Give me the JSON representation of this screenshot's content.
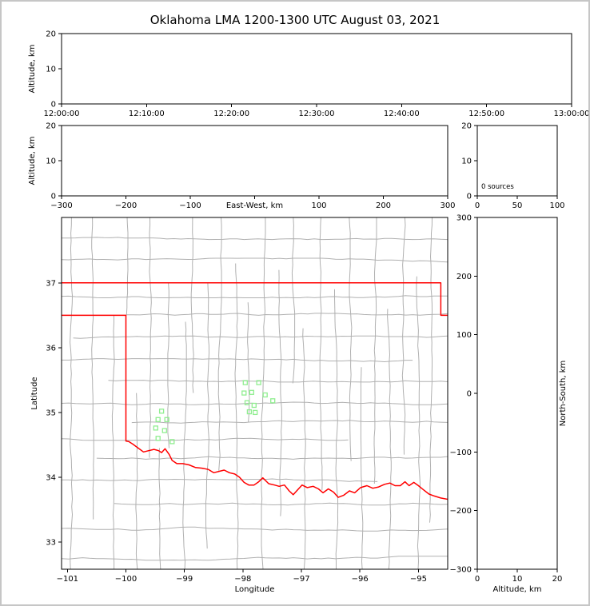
{
  "title": "Oklahoma LMA 1200-1300 UTC August 03, 2021",
  "colors": {
    "frame_border": "#c6c6c6",
    "axis": "#000000",
    "state_border": "#ff0000",
    "county_border": "#b0b0b0",
    "station_marker": "#90ee90"
  },
  "chart_data": [
    {
      "id": "time_height",
      "type": "scatter",
      "ylabel": "Altitude, km",
      "ylim": [
        0,
        20
      ],
      "yticks": [
        0,
        10,
        20
      ],
      "xtick_labels": [
        "12:00:00",
        "12:10:00",
        "12:20:00",
        "12:30:00",
        "12:40:00",
        "12:50:00",
        "13:00:00"
      ],
      "points": []
    },
    {
      "id": "ew_height",
      "type": "scatter",
      "xlabel": "East-West, km",
      "ylabel": "Altitude, km",
      "xlim": [
        -300,
        300
      ],
      "ylim": [
        0,
        20
      ],
      "xticks": [
        -300,
        -200,
        -100,
        0,
        100,
        200,
        300
      ],
      "yticks": [
        0,
        10,
        20
      ],
      "points": []
    },
    {
      "id": "alt_histogram",
      "type": "bar",
      "xlim": [
        0,
        100
      ],
      "ylim": [
        0,
        20
      ],
      "xticks": [
        0,
        50,
        100
      ],
      "yticks": [
        0,
        10,
        20
      ],
      "annotation": "0 sources",
      "values": []
    },
    {
      "id": "plan_view",
      "type": "scatter",
      "xlabel": "Longitude",
      "ylabel": "Latitude",
      "xlim": [
        -101.1,
        -94.5
      ],
      "ylim": [
        32.58,
        38.01
      ],
      "xticks": [
        -101,
        -100,
        -99,
        -98,
        -97,
        -96,
        -95
      ],
      "yticks": [
        33,
        34,
        35,
        36,
        37
      ],
      "stations": [
        [
          -97.96,
          35.46
        ],
        [
          -97.73,
          35.46
        ],
        [
          -97.98,
          35.3
        ],
        [
          -97.85,
          35.31
        ],
        [
          -97.62,
          35.27
        ],
        [
          -97.93,
          35.15
        ],
        [
          -97.81,
          35.11
        ],
        [
          -97.49,
          35.18
        ],
        [
          -97.89,
          35.01
        ],
        [
          -97.79,
          35.0
        ],
        [
          -99.39,
          35.02
        ],
        [
          -99.45,
          34.89
        ],
        [
          -99.3,
          34.89
        ],
        [
          -99.49,
          34.76
        ],
        [
          -99.34,
          34.72
        ],
        [
          -99.45,
          34.6
        ],
        [
          -99.21,
          34.55
        ]
      ],
      "state_outline_north": [
        [
          -101.1,
          37.0
        ],
        [
          -94.618,
          37.0
        ],
        [
          -94.618,
          36.5
        ],
        [
          -94.5,
          36.5
        ]
      ],
      "state_outline_main": [
        [
          -94.5,
          33.66
        ],
        [
          -94.62,
          33.68
        ],
        [
          -94.73,
          33.71
        ],
        [
          -94.82,
          33.74
        ],
        [
          -94.92,
          33.81
        ],
        [
          -95.0,
          33.87
        ],
        [
          -95.08,
          33.92
        ],
        [
          -95.16,
          33.87
        ],
        [
          -95.23,
          33.93
        ],
        [
          -95.31,
          33.87
        ],
        [
          -95.4,
          33.87
        ],
        [
          -95.49,
          33.91
        ],
        [
          -95.58,
          33.89
        ],
        [
          -95.68,
          33.85
        ],
        [
          -95.78,
          33.83
        ],
        [
          -95.88,
          33.87
        ],
        [
          -95.99,
          33.84
        ],
        [
          -96.09,
          33.76
        ],
        [
          -96.18,
          33.79
        ],
        [
          -96.28,
          33.72
        ],
        [
          -96.37,
          33.69
        ],
        [
          -96.45,
          33.77
        ],
        [
          -96.54,
          33.82
        ],
        [
          -96.63,
          33.76
        ],
        [
          -96.71,
          33.82
        ],
        [
          -96.8,
          33.86
        ],
        [
          -96.9,
          33.84
        ],
        [
          -96.99,
          33.88
        ],
        [
          -97.07,
          33.8
        ],
        [
          -97.14,
          33.73
        ],
        [
          -97.21,
          33.79
        ],
        [
          -97.29,
          33.88
        ],
        [
          -97.38,
          33.86
        ],
        [
          -97.46,
          33.88
        ],
        [
          -97.56,
          33.9
        ],
        [
          -97.66,
          33.99
        ],
        [
          -97.73,
          33.93
        ],
        [
          -97.81,
          33.88
        ],
        [
          -97.9,
          33.88
        ],
        [
          -97.98,
          33.92
        ],
        [
          -98.06,
          34.0
        ],
        [
          -98.14,
          34.05
        ],
        [
          -98.23,
          34.07
        ],
        [
          -98.32,
          34.11
        ],
        [
          -98.41,
          34.09
        ],
        [
          -98.5,
          34.07
        ],
        [
          -98.59,
          34.12
        ],
        [
          -98.7,
          34.14
        ],
        [
          -98.81,
          34.15
        ],
        [
          -98.92,
          34.19
        ],
        [
          -99.03,
          34.21
        ],
        [
          -99.13,
          34.21
        ],
        [
          -99.21,
          34.26
        ],
        [
          -99.26,
          34.35
        ],
        [
          -99.33,
          34.44
        ],
        [
          -99.39,
          34.38
        ],
        [
          -99.44,
          34.41
        ],
        [
          -99.52,
          34.43
        ],
        [
          -99.61,
          34.41
        ],
        [
          -99.7,
          34.39
        ],
        [
          -99.79,
          34.45
        ],
        [
          -99.88,
          34.51
        ],
        [
          -99.95,
          34.55
        ],
        [
          -100.0,
          34.56
        ],
        [
          -100.0,
          36.5
        ],
        [
          -101.1,
          36.5
        ]
      ],
      "county_lines_vertical": [
        [
          -100.95,
          32.58,
          38.01
        ],
        [
          -100.55,
          33.35,
          38.01
        ],
        [
          -100.2,
          32.58,
          36.5
        ],
        [
          -100.0,
          36.5,
          38.01
        ],
        [
          -99.8,
          32.58,
          35.3
        ],
        [
          -99.6,
          34.3,
          38.01
        ],
        [
          -99.4,
          32.58,
          34.45
        ],
        [
          -99.25,
          34.45,
          37.0
        ],
        [
          -99.0,
          32.58,
          36.4
        ],
        [
          -98.85,
          35.3,
          38.01
        ],
        [
          -98.6,
          32.9,
          37.0
        ],
        [
          -98.4,
          34.1,
          38.01
        ],
        [
          -98.1,
          32.58,
          37.3
        ],
        [
          -97.9,
          34.85,
          36.7
        ],
        [
          -97.65,
          32.58,
          38.01
        ],
        [
          -97.35,
          33.4,
          37.2
        ],
        [
          -97.15,
          35.45,
          38.01
        ],
        [
          -96.95,
          32.58,
          36.3
        ],
        [
          -96.65,
          33.8,
          38.01
        ],
        [
          -96.4,
          32.58,
          36.9
        ],
        [
          -96.15,
          34.25,
          38.01
        ],
        [
          -95.95,
          32.58,
          35.7
        ],
        [
          -95.75,
          33.9,
          38.01
        ],
        [
          -95.5,
          32.58,
          36.6
        ],
        [
          -95.25,
          34.35,
          38.01
        ],
        [
          -95.0,
          32.58,
          37.1
        ],
        [
          -94.8,
          33.3,
          38.01
        ]
      ],
      "county_lines_horizontal": [
        [
          37.7,
          -101.1,
          -94.5
        ],
        [
          37.35,
          -101.1,
          -94.5
        ],
        [
          36.8,
          -101.1,
          -94.5
        ],
        [
          36.5,
          -100.0,
          -94.5
        ],
        [
          36.15,
          -100.9,
          -94.5
        ],
        [
          35.8,
          -101.1,
          -95.1
        ],
        [
          35.5,
          -100.3,
          -94.5
        ],
        [
          35.15,
          -101.1,
          -94.5
        ],
        [
          34.85,
          -99.9,
          -94.5
        ],
        [
          34.6,
          -101.1,
          -96.2
        ],
        [
          34.3,
          -100.5,
          -94.5
        ],
        [
          33.95,
          -101.1,
          -95.7
        ],
        [
          33.6,
          -100.2,
          -94.5
        ],
        [
          33.2,
          -101.1,
          -94.5
        ],
        [
          32.75,
          -101.1,
          -94.5
        ]
      ]
    },
    {
      "id": "ns_height",
      "type": "scatter",
      "xlabel": "Altitude, km",
      "ylabel": "North-South, km",
      "xlim": [
        0,
        20
      ],
      "ylim": [
        -300,
        300
      ],
      "xticks": [
        0,
        10,
        20
      ],
      "yticks": [
        -300,
        -200,
        -100,
        0,
        100,
        200,
        300
      ],
      "points": []
    }
  ]
}
